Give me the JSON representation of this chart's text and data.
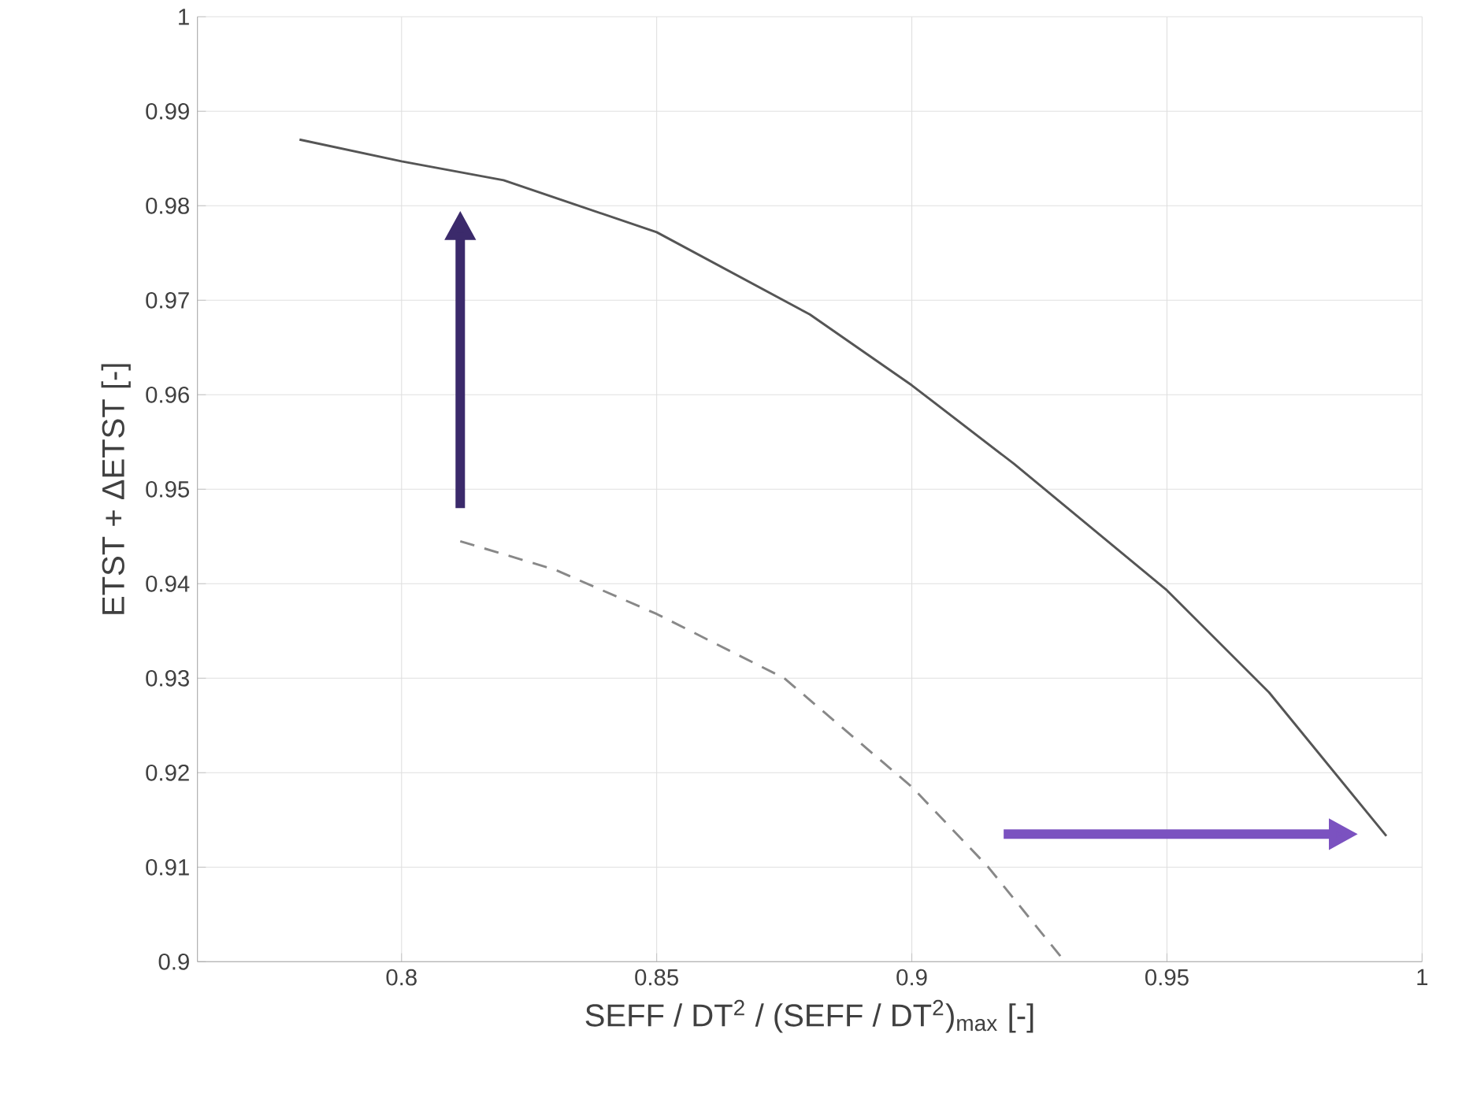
{
  "chart_data": {
    "type": "line",
    "xlabel": "SEFF / DT$^{2}$ / (SEFF / DT$^{2}$)$_{max}$ [-]",
    "ylabel": "ETST + ΔETST [-]",
    "xlim": [
      0.76,
      1
    ],
    "ylim": [
      0.9,
      1
    ],
    "xticks": [
      0.8,
      0.85,
      0.9,
      0.95,
      1
    ],
    "yticks": [
      0.9,
      0.91,
      0.92,
      0.93,
      0.94,
      0.95,
      0.96,
      0.97,
      0.98,
      0.99,
      1
    ],
    "grid": true,
    "series": [
      {
        "color": "#555555",
        "line_style": "solid",
        "x": [
          0.78,
          0.8,
          0.82,
          0.85,
          0.88,
          0.9,
          0.92,
          0.95,
          0.97,
          0.993
        ],
        "values": [
          0.987,
          0.9847,
          0.9827,
          0.9772,
          0.9685,
          0.961,
          0.9527,
          0.9393,
          0.9285,
          0.9133
        ]
      },
      {
        "color": "#888888",
        "line_style": "dashed",
        "x": [
          0.8115,
          0.83,
          0.85,
          0.875,
          0.9,
          0.915,
          0.93
        ],
        "values": [
          0.9445,
          0.9415,
          0.9368,
          0.93,
          0.9185,
          0.91,
          0.9
        ]
      }
    ]
  }
}
